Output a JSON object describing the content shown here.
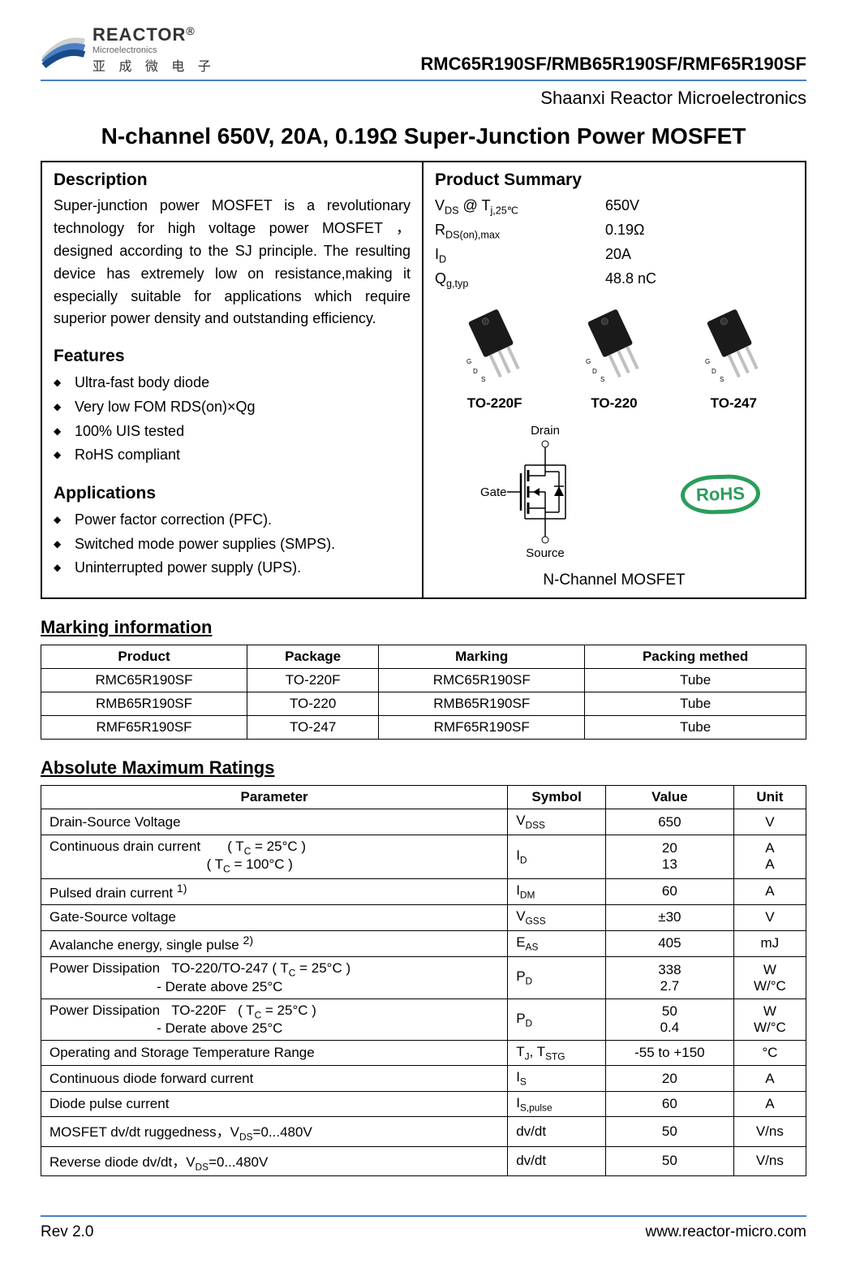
{
  "header": {
    "logo_main": "REACTOR",
    "logo_reg": "®",
    "logo_sub1": "Microelectronics",
    "logo_sub2": "亚 成 微 电 子",
    "part_number": "RMC65R190SF/RMB65R190SF/RMF65R190SF",
    "company": "Shaanxi  Reactor  Microelectronics"
  },
  "title": "N-channel 650V, 20A, 0.19Ω Super-Junction Power MOSFET",
  "description": {
    "heading": "Description",
    "text": "Super-junction power MOSFET is a revolutionary technology for high voltage power MOSFET ， designed according to the SJ principle. The resulting device has extremely low on resistance,making it especially suitable for applications which require superior power density and outstanding efficiency."
  },
  "features": {
    "heading": "Features",
    "items": [
      "Ultra-fast body diode",
      "Very low FOM RDS(on)×Qg",
      "100% UIS tested",
      "RoHS compliant"
    ]
  },
  "applications": {
    "heading": "Applications",
    "items": [
      "Power factor correction (PFC).",
      "Switched mode power supplies (SMPS).",
      "Uninterrupted power supply (UPS)."
    ]
  },
  "summary": {
    "heading": "Product Summary",
    "rows": [
      {
        "label_html": "V<sub>DS</sub> @ T<sub>j,25℃</sub>",
        "value": "650V"
      },
      {
        "label_html": "R<sub>DS(on),max</sub>",
        "value": "0.19Ω"
      },
      {
        "label_html": "I<sub>D</sub>",
        "value": "20A"
      },
      {
        "label_html": "Q<sub>g,typ</sub>",
        "value": "48.8 nC"
      }
    ]
  },
  "packages": [
    {
      "name": "TO-220F"
    },
    {
      "name": "TO-220"
    },
    {
      "name": "TO-247"
    }
  ],
  "schematic": {
    "drain": "Drain",
    "gate": "Gate",
    "source": "Source",
    "rohs": "RoHS",
    "caption": "N-Channel MOSFET"
  },
  "marking": {
    "heading": "Marking information",
    "columns": [
      "Product",
      "Package",
      "Marking",
      "Packing methed"
    ],
    "rows": [
      [
        "RMC65R190SF",
        "TO-220F",
        "RMC65R190SF",
        "Tube"
      ],
      [
        "RMB65R190SF",
        "TO-220",
        "RMB65R190SF",
        "Tube"
      ],
      [
        "RMF65R190SF",
        "TO-247",
        "RMF65R190SF",
        "Tube"
      ]
    ]
  },
  "ratings": {
    "heading": "Absolute Maximum Ratings",
    "columns": [
      "Parameter",
      "Symbol",
      "Value",
      "Unit"
    ],
    "rows": [
      {
        "param_html": "Drain-Source Voltage",
        "symbol_html": "V<sub>DSS</sub>",
        "value_html": "650",
        "unit_html": "V"
      },
      {
        "param_html": "Continuous drain current &nbsp;&nbsp;&nbsp;&nbsp;&nbsp;&nbsp;( T<sub>C</sub> = 25°C )<br>&nbsp;&nbsp;&nbsp;&nbsp;&nbsp;&nbsp;&nbsp;&nbsp;&nbsp;&nbsp;&nbsp;&nbsp;&nbsp;&nbsp;&nbsp;&nbsp;&nbsp;&nbsp;&nbsp;&nbsp;&nbsp;&nbsp;&nbsp;&nbsp;&nbsp;&nbsp;&nbsp;&nbsp;&nbsp;&nbsp;&nbsp;&nbsp;&nbsp;&nbsp;&nbsp;&nbsp;&nbsp;&nbsp;&nbsp;&nbsp;&nbsp;( T<sub>C</sub> = 100°C )",
        "symbol_html": "I<sub>D</sub>",
        "value_html": "20<br>13",
        "unit_html": "A<br>A"
      },
      {
        "param_html": "Pulsed drain current <sup>1)</sup>",
        "symbol_html": "I<sub>DM</sub>",
        "value_html": "60",
        "unit_html": "A"
      },
      {
        "param_html": "Gate-Source voltage",
        "symbol_html": "V<sub>GSS</sub>",
        "value_html": "±30",
        "unit_html": "V"
      },
      {
        "param_html": "Avalanche energy, single pulse <sup>2)</sup>",
        "symbol_html": "E<sub>AS</sub>",
        "value_html": "405",
        "unit_html": "mJ"
      },
      {
        "param_html": "Power Dissipation &nbsp;&nbsp;TO-220/TO-247 ( T<sub>C</sub> = 25°C )<br>&nbsp;&nbsp;&nbsp;&nbsp;&nbsp;&nbsp;&nbsp;&nbsp;&nbsp;&nbsp;&nbsp;&nbsp;&nbsp;&nbsp;&nbsp;&nbsp;&nbsp;&nbsp;&nbsp;&nbsp;&nbsp;&nbsp;&nbsp;&nbsp;&nbsp;&nbsp;&nbsp;&nbsp;- Derate above 25°C",
        "symbol_html": "P<sub>D</sub>",
        "value_html": "338<br>2.7",
        "unit_html": "W<br>W/°C"
      },
      {
        "param_html": "Power Dissipation &nbsp;&nbsp;TO-220F &nbsp;&nbsp;( T<sub>C</sub> = 25°C )<br>&nbsp;&nbsp;&nbsp;&nbsp;&nbsp;&nbsp;&nbsp;&nbsp;&nbsp;&nbsp;&nbsp;&nbsp;&nbsp;&nbsp;&nbsp;&nbsp;&nbsp;&nbsp;&nbsp;&nbsp;&nbsp;&nbsp;&nbsp;&nbsp;&nbsp;&nbsp;&nbsp;&nbsp;- Derate above 25°C",
        "symbol_html": "P<sub>D</sub>",
        "value_html": "50<br>0.4",
        "unit_html": "W<br>W/°C"
      },
      {
        "param_html": "Operating and Storage Temperature Range",
        "symbol_html": "T<sub>J</sub>, T<sub>STG</sub>",
        "value_html": "-55 to +150",
        "unit_html": "°C"
      },
      {
        "param_html": "Continuous diode forward current",
        "symbol_html": "I<sub>S</sub>",
        "value_html": "20",
        "unit_html": "A"
      },
      {
        "param_html": "Diode pulse current",
        "symbol_html": "I<sub>S,pulse</sub>",
        "value_html": "60",
        "unit_html": "A"
      },
      {
        "param_html": "MOSFET dv/dt ruggedness，V<sub>DS</sub>=0...480V",
        "symbol_html": "dv/dt",
        "value_html": "50",
        "unit_html": "V/ns"
      },
      {
        "param_html": "Reverse diode dv/dt，V<sub>DS</sub>=0...480V",
        "symbol_html": "dv/dt",
        "value_html": "50",
        "unit_html": "V/ns"
      }
    ]
  },
  "footer": {
    "rev": "Rev 2.0",
    "url": "www.reactor-micro.com"
  },
  "colors": {
    "accent": "#4a7fc4",
    "rohs": "#2a9d5a",
    "pkg_body": "#1a1a1a",
    "pkg_lead": "#c0c0c0"
  }
}
